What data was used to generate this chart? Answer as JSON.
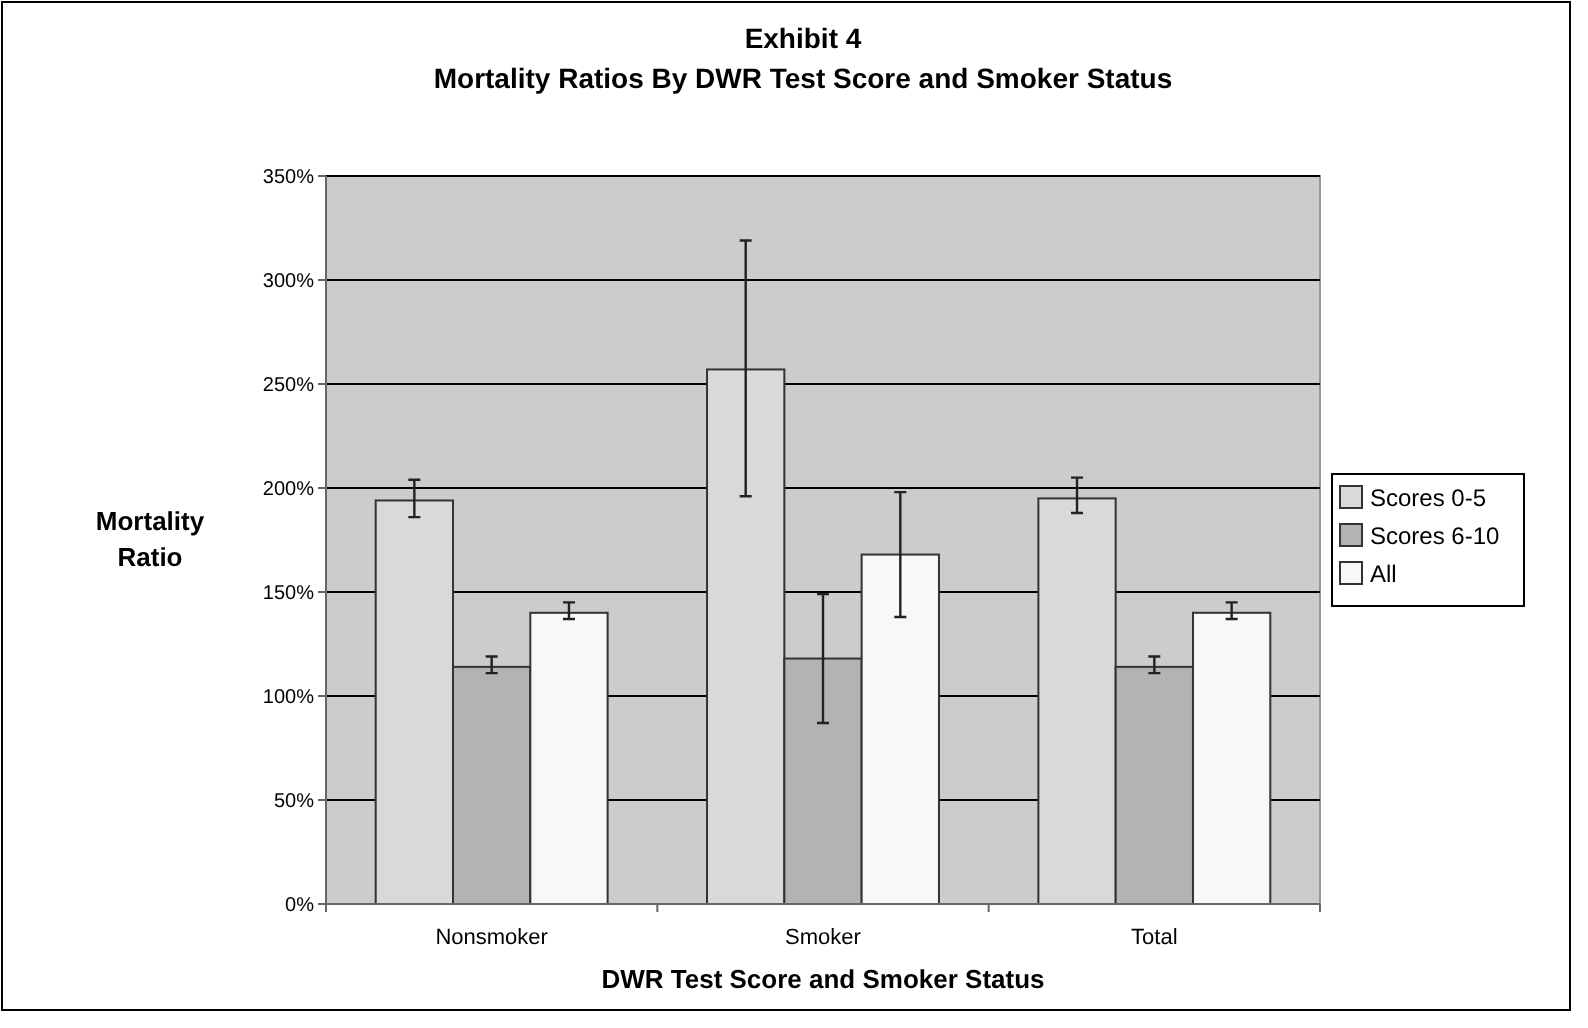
{
  "chart_data": {
    "type": "bar",
    "title": "Exhibit 4",
    "subtitle": "Mortality Ratios By DWR Test Score and Smoker Status",
    "xlabel": "DWR Test Score and Smoker Status",
    "ylabel": "Mortality Ratio",
    "categories": [
      "Nonsmoker",
      "Smoker",
      "Total"
    ],
    "series": [
      {
        "name": "Scores 0-5",
        "color": "#d9d9d9",
        "values": [
          194,
          257,
          195
        ],
        "errors": [
          [
            186,
            204
          ],
          [
            196,
            319
          ],
          [
            188,
            205
          ]
        ]
      },
      {
        "name": "Scores 6-10",
        "color": "#b3b3b3",
        "values": [
          114,
          118,
          114
        ],
        "errors": [
          [
            111,
            119
          ],
          [
            87,
            149
          ],
          [
            111,
            119
          ]
        ]
      },
      {
        "name": "All",
        "color": "#f8f8f8",
        "values": [
          140,
          168,
          140
        ],
        "errors": [
          [
            137,
            145
          ],
          [
            138,
            198
          ],
          [
            137,
            145
          ]
        ]
      }
    ],
    "ylim": [
      0,
      350
    ],
    "yticks": [
      {
        "value": 0,
        "label": "0%"
      },
      {
        "value": 50,
        "label": "50%"
      },
      {
        "value": 100,
        "label": "100%"
      },
      {
        "value": 150,
        "label": "150%"
      },
      {
        "value": 200,
        "label": "200%"
      },
      {
        "value": 250,
        "label": "250%"
      },
      {
        "value": 300,
        "label": "300%"
      },
      {
        "value": 350,
        "label": "350%"
      }
    ],
    "grid": "y",
    "legend": "right"
  }
}
